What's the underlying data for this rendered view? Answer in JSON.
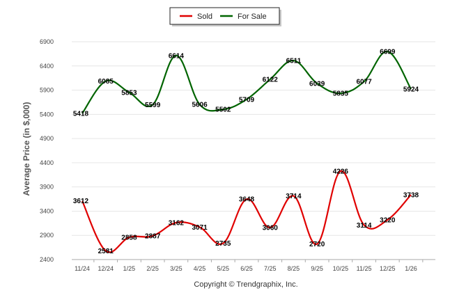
{
  "chart_data": {
    "type": "line",
    "categories": [
      "11/24",
      "12/24",
      "1/25",
      "2/25",
      "3/25",
      "4/25",
      "5/25",
      "6/25",
      "7/25",
      "8/25",
      "9/25",
      "10/25",
      "11/25",
      "12/25",
      "1/26"
    ],
    "series": [
      {
        "name": "Sold",
        "color": "#e00000",
        "values": [
          3612,
          2581,
          2858,
          2887,
          3162,
          3071,
          2735,
          3648,
          3060,
          3714,
          2720,
          4226,
          3114,
          3220,
          3738
        ]
      },
      {
        "name": "For Sale",
        "color": "#006400",
        "values": [
          5418,
          6085,
          5853,
          5599,
          6614,
          5606,
          5502,
          5709,
          6122,
          6511,
          6039,
          5835,
          6077,
          6699,
          5924
        ]
      }
    ],
    "yticks": [
      2400,
      2900,
      3400,
      3900,
      4400,
      4900,
      5400,
      5900,
      6400,
      6900
    ],
    "ylim": [
      2400,
      6900
    ],
    "title": "",
    "xlabel": "",
    "ylabel": "Average Price (in $,000)",
    "legend_position": "top-center",
    "grid": true
  },
  "footer": {
    "credit": "Copyright © Trendgraphix, Inc."
  }
}
